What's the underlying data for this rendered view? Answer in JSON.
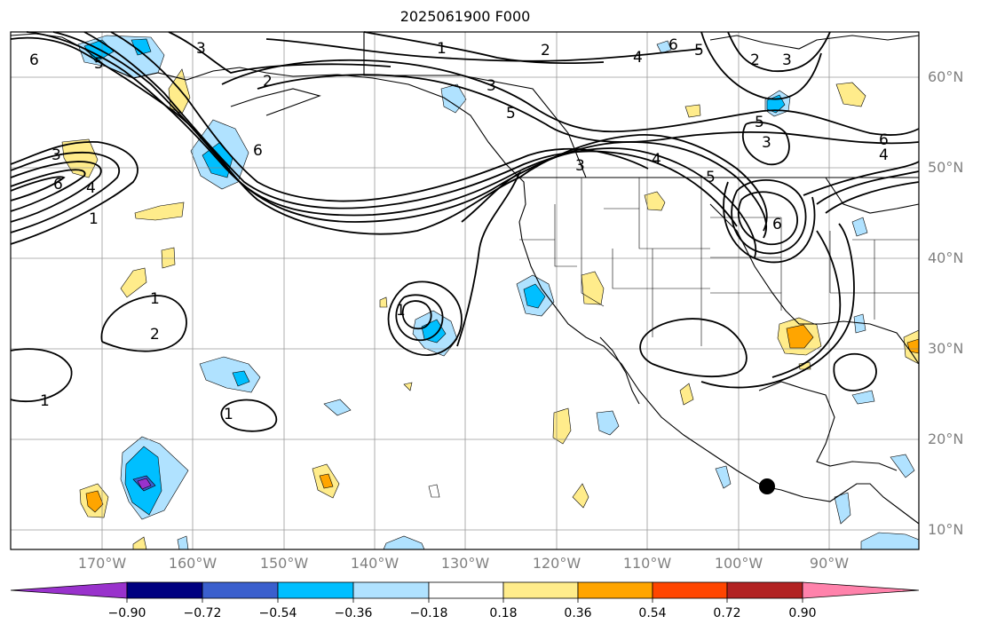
{
  "title": "2025061900 F000",
  "latitude_labels": [
    "60°N",
    "50°N",
    "40°N",
    "30°N",
    "20°N",
    "10°N"
  ],
  "longitude_labels": [
    "170°W",
    "160°W",
    "150°W",
    "140°W",
    "130°W",
    "120°W",
    "110°W",
    "100°W",
    "90°W"
  ],
  "colorbar": {
    "tick_labels": [
      "−0.90",
      "−0.72",
      "−0.54",
      "−0.36",
      "−0.18",
      "0.18",
      "0.36",
      "0.54",
      "0.72",
      "0.90"
    ],
    "colors": [
      "#9932cc",
      "#000080",
      "#3a5fcd",
      "#00bfff",
      "#b0e2ff",
      "#ffffff",
      "#ffec8b",
      "#ffa500",
      "#ff4500",
      "#b22222",
      "#ff82ab"
    ]
  },
  "contour_labels": [
    "6",
    "3",
    "5",
    "2",
    "1",
    "2",
    "3",
    "5",
    "6",
    "4",
    "2",
    "5",
    "3",
    "6",
    "4",
    "3",
    "5",
    "6",
    "4",
    "1",
    "6",
    "3",
    "4",
    "5",
    "6",
    "3",
    "1",
    "2",
    "1",
    "1",
    "1"
  ],
  "marker": "storm-center-dot"
}
